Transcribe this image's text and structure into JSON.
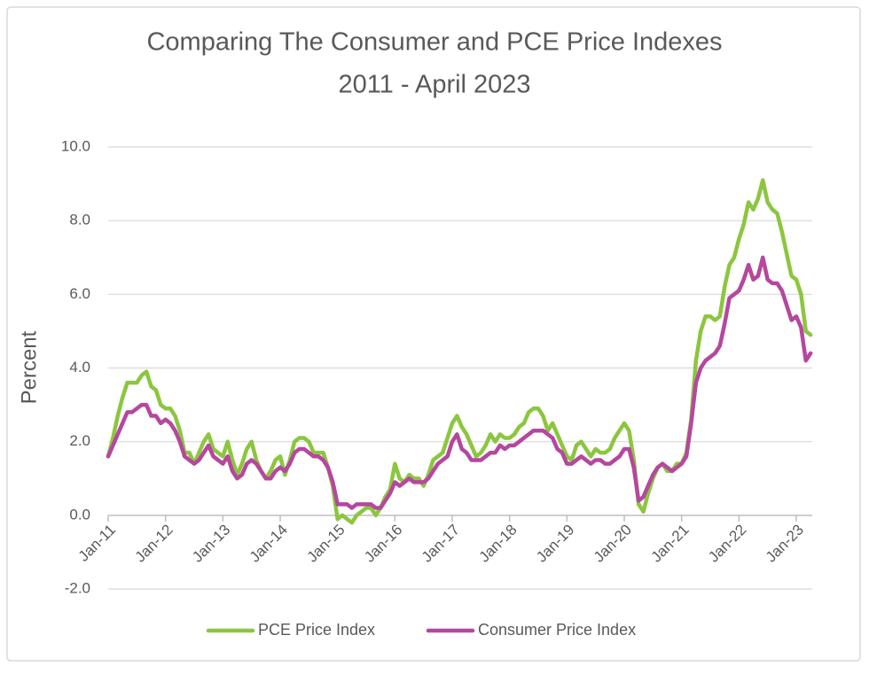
{
  "chart_data": {
    "type": "line",
    "title": "Comparing The Consumer and PCE Price Indexes",
    "subtitle": "2011 - April 2023",
    "y_label": "Percent",
    "categories": [
      "Jan-11",
      null,
      null,
      null,
      null,
      null,
      null,
      null,
      null,
      null,
      null,
      null,
      "Jan-12",
      null,
      null,
      null,
      null,
      null,
      null,
      null,
      null,
      null,
      null,
      null,
      "Jan-13",
      null,
      null,
      null,
      null,
      null,
      null,
      null,
      null,
      null,
      null,
      null,
      "Jan-14",
      null,
      null,
      null,
      null,
      null,
      null,
      null,
      null,
      null,
      null,
      null,
      "Jan-15",
      null,
      null,
      null,
      null,
      null,
      null,
      null,
      null,
      null,
      null,
      null,
      "Jan-16",
      null,
      null,
      null,
      null,
      null,
      null,
      null,
      null,
      null,
      null,
      null,
      "Jan-17",
      null,
      null,
      null,
      null,
      null,
      null,
      null,
      null,
      null,
      null,
      null,
      "Jan-18",
      null,
      null,
      null,
      null,
      null,
      null,
      null,
      null,
      null,
      null,
      null,
      "Jan-19",
      null,
      null,
      null,
      null,
      null,
      null,
      null,
      null,
      null,
      null,
      null,
      "Jan-20",
      null,
      null,
      null,
      null,
      null,
      null,
      null,
      null,
      null,
      null,
      null,
      "Jan-21",
      null,
      null,
      null,
      null,
      null,
      null,
      null,
      null,
      null,
      null,
      null,
      "Jan-22",
      null,
      null,
      null,
      null,
      null,
      null,
      null,
      null,
      null,
      null,
      null,
      "Jan-23",
      null,
      null,
      null
    ],
    "series": [
      {
        "name": "PCE Price Index",
        "color": "#8cc63f",
        "values": [
          1.6,
          2.1,
          2.7,
          3.2,
          3.6,
          3.6,
          3.6,
          3.8,
          3.9,
          3.5,
          3.4,
          3.0,
          2.9,
          2.9,
          2.7,
          2.3,
          1.7,
          1.7,
          1.4,
          1.7,
          2.0,
          2.2,
          1.8,
          1.7,
          1.6,
          2.0,
          1.5,
          1.1,
          1.4,
          1.8,
          2.0,
          1.5,
          1.2,
          1.0,
          1.2,
          1.5,
          1.6,
          1.1,
          1.5,
          2.0,
          2.1,
          2.1,
          2.0,
          1.7,
          1.7,
          1.7,
          1.3,
          0.8,
          -0.1,
          0.0,
          -0.1,
          -0.2,
          0.0,
          0.1,
          0.2,
          0.2,
          0.0,
          0.2,
          0.5,
          0.7,
          1.4,
          1.0,
          0.9,
          1.1,
          1.0,
          1.0,
          0.8,
          1.1,
          1.5,
          1.6,
          1.7,
          2.1,
          2.5,
          2.7,
          2.4,
          2.2,
          1.9,
          1.6,
          1.7,
          1.9,
          2.2,
          2.0,
          2.2,
          2.1,
          2.1,
          2.2,
          2.4,
          2.5,
          2.8,
          2.9,
          2.9,
          2.7,
          2.3,
          2.5,
          2.2,
          1.9,
          1.6,
          1.5,
          1.9,
          2.0,
          1.8,
          1.6,
          1.8,
          1.7,
          1.7,
          1.8,
          2.1,
          2.3,
          2.5,
          2.3,
          1.5,
          0.3,
          0.1,
          0.6,
          1.0,
          1.3,
          1.4,
          1.2,
          1.2,
          1.4,
          1.4,
          1.7,
          2.6,
          4.2,
          5.0,
          5.4,
          5.4,
          5.3,
          5.4,
          6.2,
          6.8,
          7.0,
          7.5,
          7.9,
          8.5,
          8.3,
          8.6,
          9.1,
          8.5,
          8.3,
          8.2,
          7.7,
          7.1,
          6.5,
          6.4,
          6.0,
          5.0,
          4.9
        ]
      },
      {
        "name": "Consumer Price Index",
        "color": "#b5479e",
        "values": [
          1.6,
          1.9,
          2.2,
          2.5,
          2.8,
          2.8,
          2.9,
          3.0,
          3.0,
          2.7,
          2.7,
          2.5,
          2.6,
          2.5,
          2.3,
          2.0,
          1.6,
          1.5,
          1.4,
          1.5,
          1.7,
          1.9,
          1.6,
          1.5,
          1.4,
          1.6,
          1.2,
          1.0,
          1.1,
          1.4,
          1.5,
          1.4,
          1.2,
          1.0,
          1.0,
          1.2,
          1.3,
          1.2,
          1.4,
          1.7,
          1.8,
          1.8,
          1.7,
          1.6,
          1.6,
          1.5,
          1.3,
          0.9,
          0.3,
          0.3,
          0.3,
          0.2,
          0.3,
          0.3,
          0.3,
          0.3,
          0.2,
          0.2,
          0.4,
          0.6,
          0.9,
          0.8,
          0.9,
          1.0,
          0.9,
          0.9,
          0.9,
          1.0,
          1.2,
          1.4,
          1.5,
          1.6,
          2.0,
          2.2,
          1.8,
          1.7,
          1.5,
          1.5,
          1.5,
          1.6,
          1.7,
          1.7,
          1.9,
          1.8,
          1.9,
          1.9,
          2.0,
          2.1,
          2.2,
          2.3,
          2.3,
          2.3,
          2.2,
          2.1,
          1.8,
          1.7,
          1.4,
          1.4,
          1.5,
          1.6,
          1.5,
          1.4,
          1.5,
          1.5,
          1.4,
          1.4,
          1.5,
          1.6,
          1.8,
          1.8,
          1.3,
          0.4,
          0.5,
          0.8,
          1.1,
          1.3,
          1.4,
          1.3,
          1.2,
          1.3,
          1.4,
          1.6,
          2.5,
          3.6,
          4.0,
          4.2,
          4.3,
          4.4,
          4.6,
          5.2,
          5.9,
          6.0,
          6.1,
          6.4,
          6.8,
          6.4,
          6.5,
          7.0,
          6.4,
          6.3,
          6.3,
          6.1,
          5.7,
          5.3,
          5.4,
          5.1,
          4.2,
          4.4
        ]
      }
    ],
    "ylim": [
      -2,
      10
    ],
    "yticks": [
      {
        "value": -2,
        "label": "-2.0"
      },
      {
        "value": 0,
        "label": "0.0"
      },
      {
        "value": 2,
        "label": "2.0"
      },
      {
        "value": 4,
        "label": "4.0"
      },
      {
        "value": 6,
        "label": "6.0"
      },
      {
        "value": 8,
        "label": "8.0"
      },
      {
        "value": 10,
        "label": "10.0"
      }
    ],
    "grid": true,
    "legend": "bottom"
  }
}
